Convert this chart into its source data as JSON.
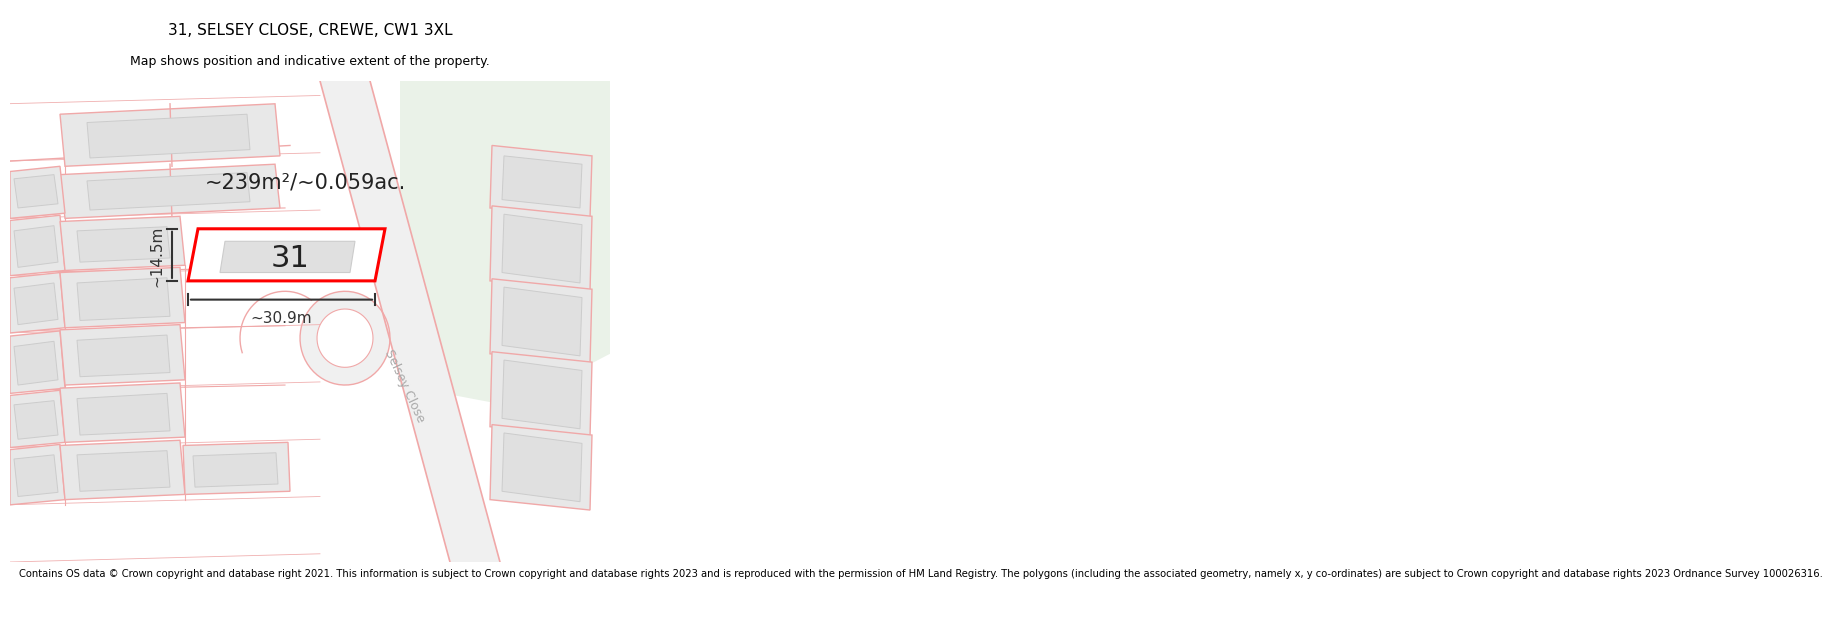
{
  "title_line1": "31, SELSEY CLOSE, CREWE, CW1 3XL",
  "title_line2": "Map shows position and indicative extent of the property.",
  "footer_text": "Contains OS data © Crown copyright and database right 2021. This information is subject to Crown copyright and database rights 2023 and is reproduced with the permission of HM Land Registry. The polygons (including the associated geometry, namely x, y co-ordinates) are subject to Crown copyright and database rights 2023 Ordnance Survey 100026316.",
  "area_label": "~239m²/~0.059ac.",
  "width_label": "~30.9m",
  "height_label": "~14.5m",
  "plot_number": "31",
  "bg_color": "#ffffff",
  "map_bg": "#f7f7f5",
  "building_fill": "#e8e8e8",
  "building_stroke": "#f0a8a8",
  "road_color": "#e8e8e8",
  "highlight_color": "#ff0000",
  "highlight_fill": "#ffffff",
  "dim_color": "#333333",
  "green_fill": "#eaf0ea",
  "title_fontsize": 11,
  "subtitle_fontsize": 9,
  "footer_fontsize": 7.2,
  "label_fontsize": 11,
  "plot_num_fontsize": 22,
  "area_fontsize": 15,
  "road_label_color": "#aaaaaa",
  "road_label_fontsize": 9
}
